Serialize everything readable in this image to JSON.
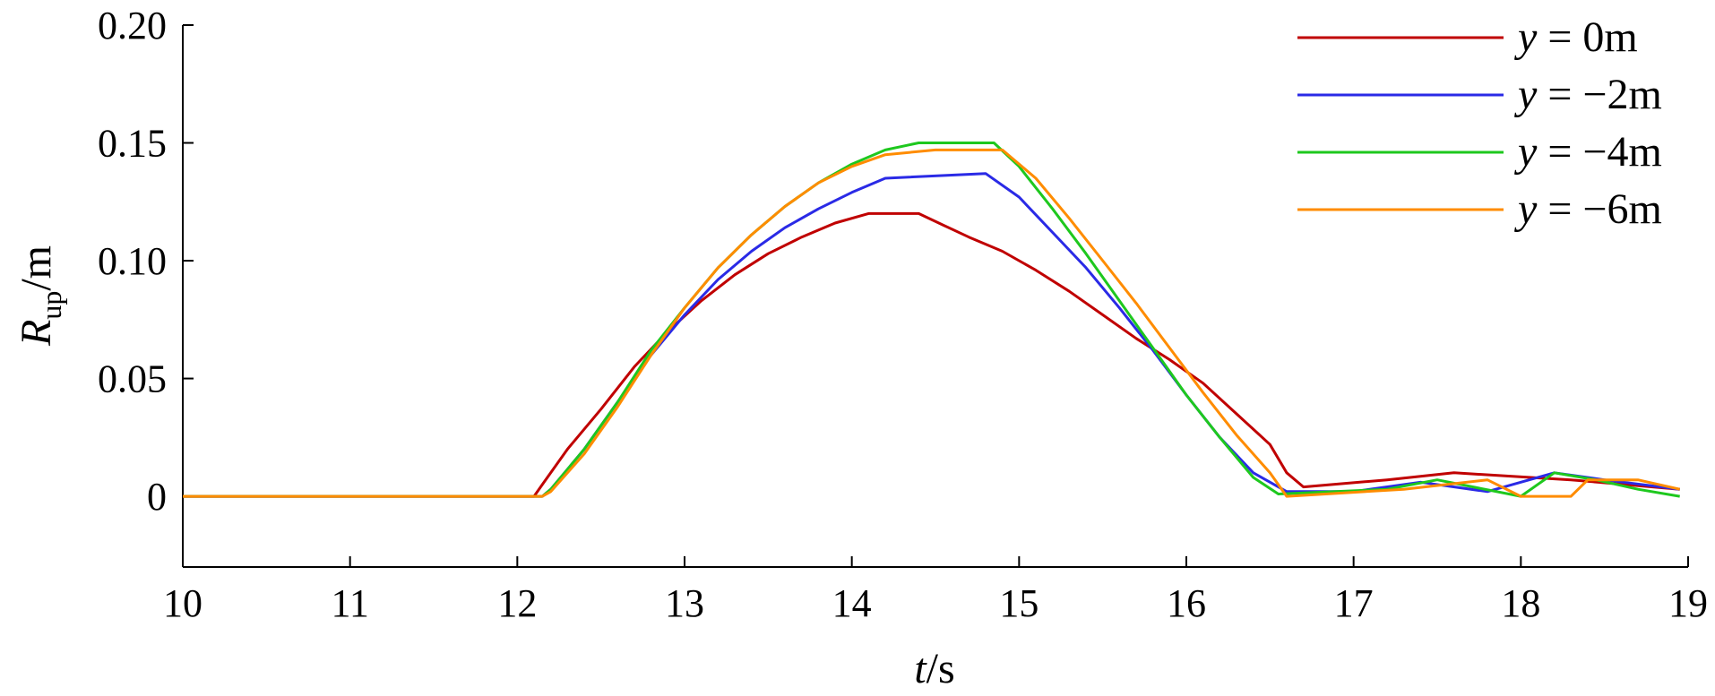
{
  "chart_data": {
    "type": "line",
    "xlabel": {
      "var": "t",
      "unit": "/s"
    },
    "ylabel": {
      "var": "R",
      "sub": "up",
      "unit": "/m"
    },
    "xlim": [
      10,
      19
    ],
    "ylim": [
      -0.03,
      0.2
    ],
    "xticks": [
      10,
      11,
      12,
      13,
      14,
      15,
      16,
      17,
      18,
      19
    ],
    "xtick_labels": [
      "10",
      "11",
      "12",
      "13",
      "14",
      "15",
      "16",
      "17",
      "18",
      "19"
    ],
    "yticks": [
      0,
      0.05,
      0.1,
      0.15,
      0.2
    ],
    "ytick_labels": [
      "0",
      "0.05",
      "0.10",
      "0.15",
      "0.20"
    ],
    "grid": false,
    "legend_position": "top-right",
    "series": [
      {
        "name": "y = 0m",
        "legend": {
          "var": "y",
          "rest": " = 0m"
        },
        "color": "#c00000",
        "x": [
          10,
          12.1,
          12.15,
          12.3,
          12.5,
          12.7,
          12.9,
          13.1,
          13.3,
          13.5,
          13.7,
          13.9,
          14.1,
          14.4,
          14.55,
          14.7,
          14.9,
          15.1,
          15.3,
          15.5,
          15.7,
          15.9,
          16.1,
          16.3,
          16.5,
          16.6,
          16.7,
          17.2,
          17.6,
          18.3,
          18.95
        ],
        "y": [
          0,
          0,
          0.005,
          0.02,
          0.037,
          0.055,
          0.07,
          0.083,
          0.094,
          0.103,
          0.11,
          0.116,
          0.12,
          0.12,
          0.115,
          0.11,
          0.104,
          0.096,
          0.087,
          0.077,
          0.067,
          0.058,
          0.048,
          0.035,
          0.022,
          0.01,
          0.004,
          0.007,
          0.01,
          0.007,
          0.003
        ]
      },
      {
        "name": "y = −2m",
        "legend": {
          "var": "y",
          "rest": " = −2m"
        },
        "color": "#2a2ae6",
        "x": [
          10,
          12.15,
          12.2,
          12.4,
          12.6,
          12.8,
          13.0,
          13.2,
          13.4,
          13.6,
          13.8,
          14.0,
          14.2,
          14.8,
          15.0,
          15.2,
          15.4,
          15.6,
          15.8,
          16.0,
          16.2,
          16.4,
          16.6,
          17.0,
          17.4,
          17.8,
          18.2,
          18.5,
          18.95
        ],
        "y": [
          0,
          0,
          0.003,
          0.02,
          0.04,
          0.06,
          0.077,
          0.092,
          0.104,
          0.114,
          0.122,
          0.129,
          0.135,
          0.137,
          0.127,
          0.112,
          0.097,
          0.08,
          0.062,
          0.043,
          0.025,
          0.01,
          0.002,
          0.002,
          0.006,
          0.002,
          0.01,
          0.007,
          0.003
        ]
      },
      {
        "name": "y = −4m",
        "legend": {
          "var": "y",
          "rest": " = −4m"
        },
        "color": "#1ec81e",
        "x": [
          10,
          12.15,
          12.2,
          12.4,
          12.6,
          12.8,
          13.0,
          13.2,
          13.4,
          13.6,
          13.8,
          14.0,
          14.2,
          14.4,
          14.85,
          15.0,
          15.2,
          15.4,
          15.6,
          15.8,
          16.0,
          16.2,
          16.4,
          16.55,
          17.2,
          17.5,
          18.0,
          18.2,
          18.45,
          18.7,
          18.95
        ],
        "y": [
          0,
          0,
          0.003,
          0.02,
          0.04,
          0.062,
          0.08,
          0.097,
          0.111,
          0.123,
          0.133,
          0.141,
          0.147,
          0.15,
          0.15,
          0.14,
          0.122,
          0.103,
          0.083,
          0.063,
          0.043,
          0.025,
          0.008,
          0.001,
          0.003,
          0.007,
          0.0,
          0.01,
          0.007,
          0.003,
          0.0
        ]
      },
      {
        "name": "y = −6m",
        "legend": {
          "var": "y",
          "rest": " = −6m"
        },
        "color": "#ff8c00",
        "x": [
          10,
          12.15,
          12.2,
          12.4,
          12.6,
          12.8,
          13.0,
          13.2,
          13.4,
          13.6,
          13.8,
          14.0,
          14.2,
          14.5,
          14.9,
          15.1,
          15.3,
          15.5,
          15.7,
          15.9,
          16.1,
          16.3,
          16.5,
          16.6,
          17.3,
          17.8,
          18.0,
          18.3,
          18.4,
          18.7,
          18.95
        ],
        "y": [
          0,
          0,
          0.002,
          0.018,
          0.038,
          0.06,
          0.08,
          0.097,
          0.111,
          0.123,
          0.133,
          0.14,
          0.145,
          0.147,
          0.147,
          0.135,
          0.118,
          0.1,
          0.082,
          0.063,
          0.044,
          0.026,
          0.01,
          0.0,
          0.003,
          0.007,
          0.0,
          0.0,
          0.007,
          0.007,
          0.003
        ]
      }
    ]
  }
}
